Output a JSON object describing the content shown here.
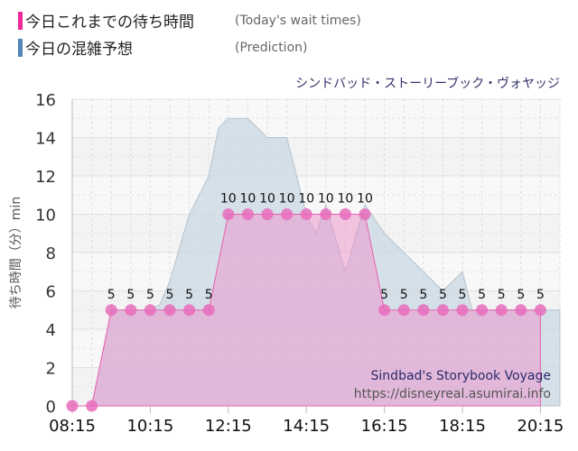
{
  "legend": [
    {
      "label": "今日これまでの待ち時間",
      "sub": "(Today's wait times)",
      "color": "#f0289a"
    },
    {
      "label": "今日の混雑予想",
      "sub": "(Prediction)",
      "color": "#4f86b6"
    }
  ],
  "chart_data": {
    "type": "area",
    "title": "シンドバッド・ストーリーブック・ヴォヤッジ",
    "ylabel": "待ち時間（分）min",
    "xlabel": "",
    "ylim": [
      0,
      16
    ],
    "xlim_minutes": [
      495,
      1245
    ],
    "yticks": [
      "0",
      "2",
      "4",
      "6",
      "8",
      "10",
      "12",
      "14",
      "16"
    ],
    "xticks": [
      "08:15",
      "10:15",
      "12:15",
      "14:15",
      "16:15",
      "18:15",
      "20:15"
    ],
    "grid": true,
    "series": [
      {
        "name": "Today's wait times",
        "times": [
          "08:15",
          "08:45",
          "09:15",
          "09:45",
          "10:15",
          "10:45",
          "11:15",
          "11:45",
          "12:15",
          "12:45",
          "13:15",
          "13:45",
          "14:15",
          "14:45",
          "15:15",
          "15:45",
          "16:15",
          "16:45",
          "17:15",
          "17:45",
          "18:15",
          "18:45",
          "19:15",
          "19:45",
          "20:15"
        ],
        "values": [
          0,
          0,
          5,
          5,
          5,
          5,
          5,
          5,
          10,
          10,
          10,
          10,
          10,
          10,
          10,
          10,
          5,
          5,
          5,
          5,
          5,
          5,
          5,
          5,
          5
        ]
      },
      {
        "name": "Prediction",
        "times": [
          "08:15",
          "08:45",
          "09:15",
          "09:45",
          "10:15",
          "10:30",
          "10:45",
          "11:15",
          "11:45",
          "12:00",
          "12:15",
          "12:45",
          "13:15",
          "13:45",
          "14:00",
          "14:15",
          "14:30",
          "14:45",
          "15:15",
          "15:45",
          "16:15",
          "16:45",
          "17:15",
          "17:45",
          "18:15",
          "18:30",
          "20:15",
          "20:45"
        ],
        "values": [
          0,
          0,
          5,
          5,
          5,
          5.3,
          6.5,
          10,
          12,
          14.5,
          15,
          15,
          14,
          14,
          12,
          10,
          9,
          10.5,
          7,
          10.5,
          9,
          8,
          7,
          6,
          7,
          5,
          5,
          5
        ]
      }
    ],
    "annotations": [
      "Sindbad's Storybook Voyage",
      "https://disneyreal.asumirai.info"
    ]
  }
}
